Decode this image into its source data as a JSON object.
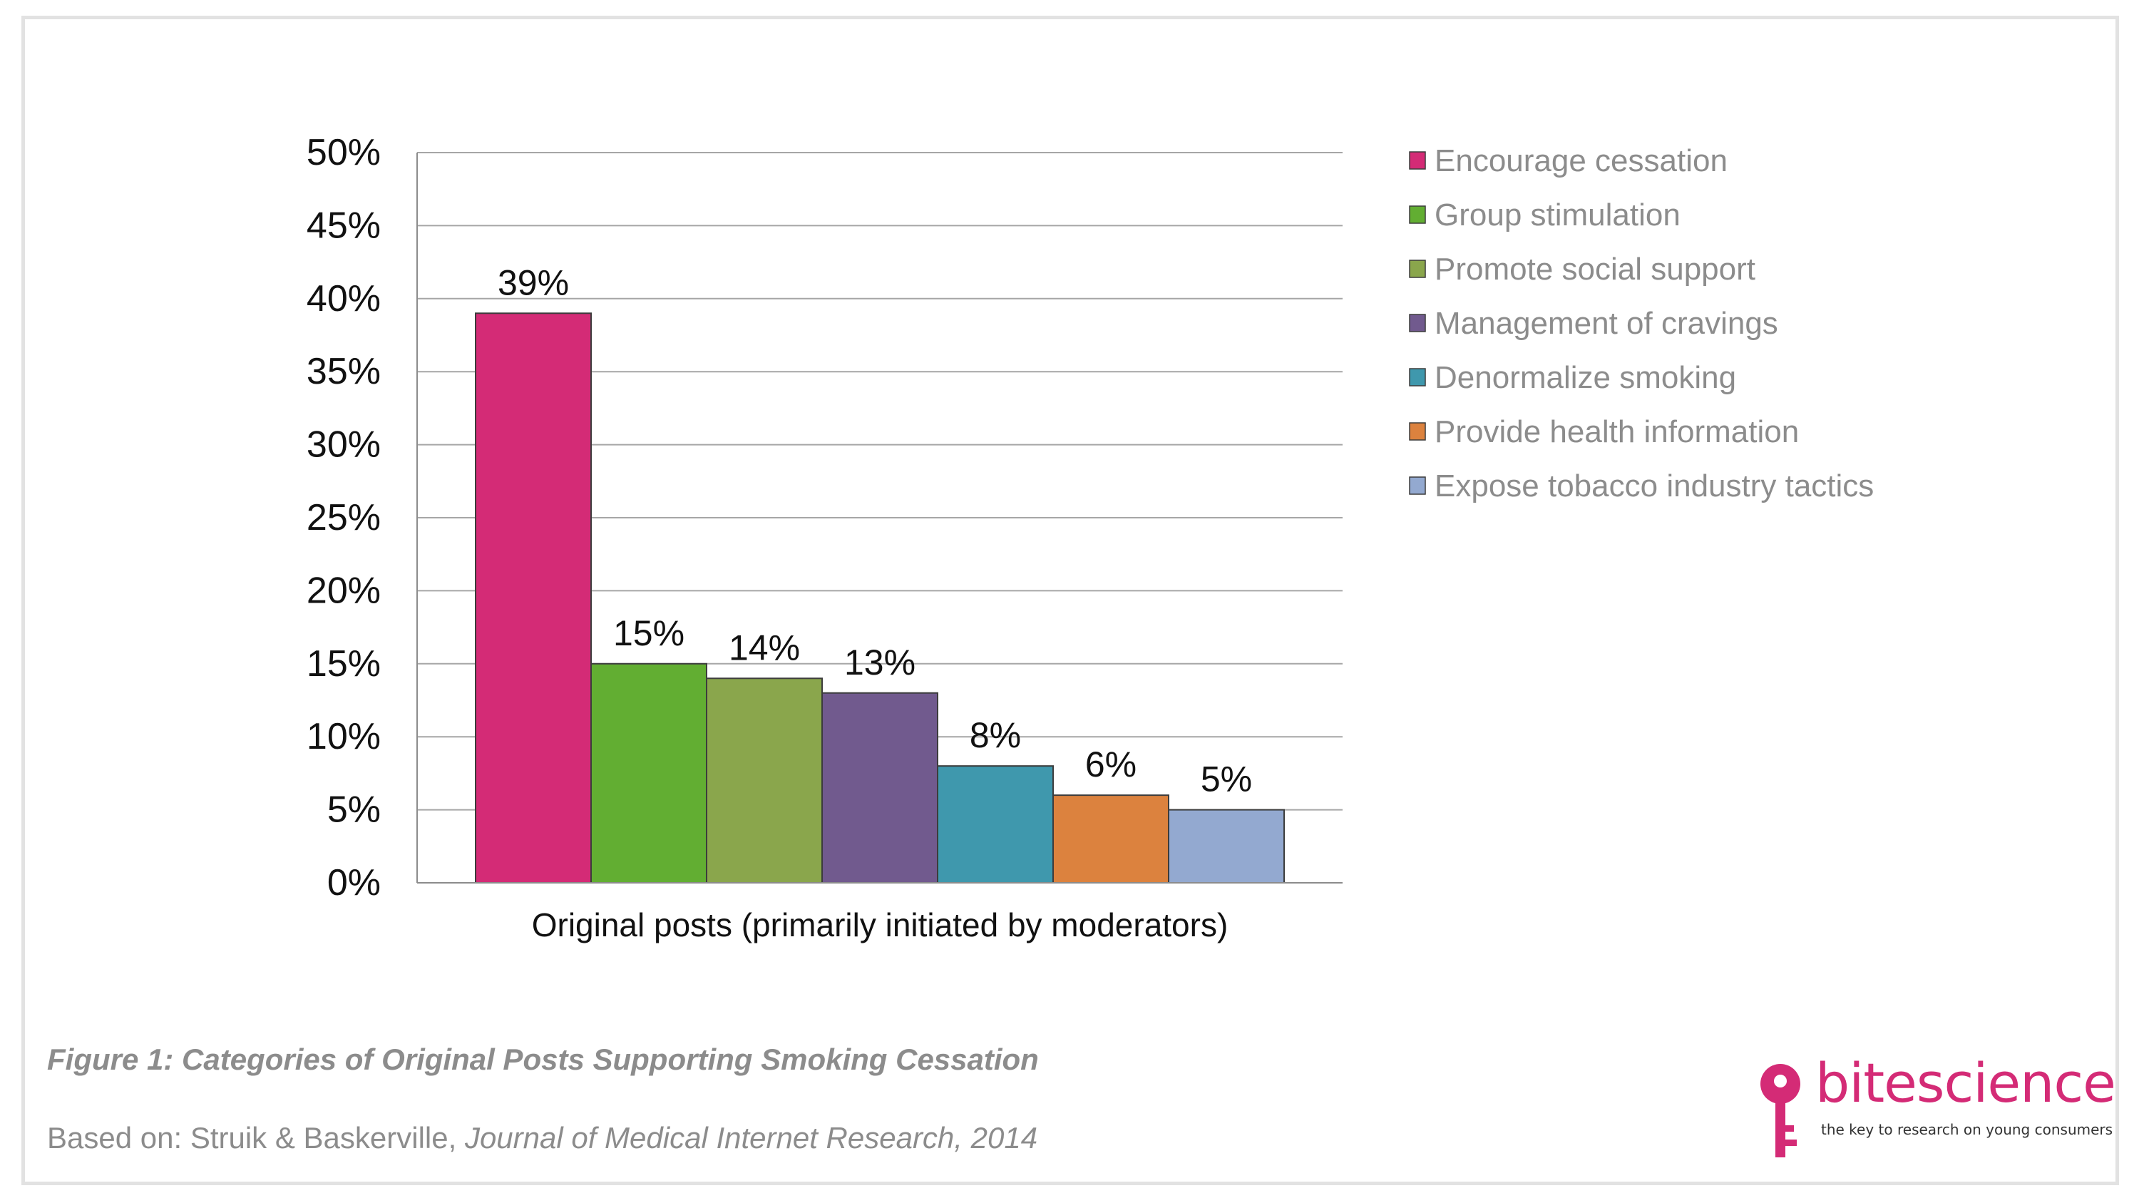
{
  "figure": {
    "caption": "Figure 1: Categories of Original Posts Supporting Smoking Cessation",
    "source_prefix": "Based on: Struik & Baskerville, ",
    "source_journal": "Journal of Medical Internet Research, 2014"
  },
  "logo": {
    "word_bite": "bite",
    "word_science": "science",
    "tagline": "the key to research on young consumers",
    "icon": "key-icon",
    "color": "#d42b76"
  },
  "chart_data": {
    "type": "bar",
    "title": "",
    "xlabel": "Original posts (primarily initiated by moderators)",
    "ylabel": "",
    "ylim": [
      0,
      50
    ],
    "y_ticks": [
      0,
      5,
      10,
      15,
      20,
      25,
      30,
      35,
      40,
      45,
      50
    ],
    "y_tick_labels": [
      "0%",
      "5%",
      "10%",
      "15%",
      "20%",
      "25%",
      "30%",
      "35%",
      "40%",
      "45%",
      "50%"
    ],
    "grid": true,
    "legend_position": "right",
    "series": [
      {
        "name": "Encourage cessation",
        "value": 39,
        "label": "39%",
        "color": "#d42b76"
      },
      {
        "name": "Group stimulation",
        "value": 15,
        "label": "15%",
        "color": "#62ae32"
      },
      {
        "name": "Promote social support",
        "value": 14,
        "label": "14%",
        "color": "#8aa64c"
      },
      {
        "name": "Management of cravings",
        "value": 13,
        "label": "13%",
        "color": "#715a8e"
      },
      {
        "name": "Denormalize smoking",
        "value": 8,
        "label": "8%",
        "color": "#3f98ad"
      },
      {
        "name": "Provide health information",
        "value": 6,
        "label": "6%",
        "color": "#dc823e"
      },
      {
        "name": "Expose tobacco industry tactics",
        "value": 5,
        "label": "5%",
        "color": "#93a9d0"
      }
    ]
  }
}
